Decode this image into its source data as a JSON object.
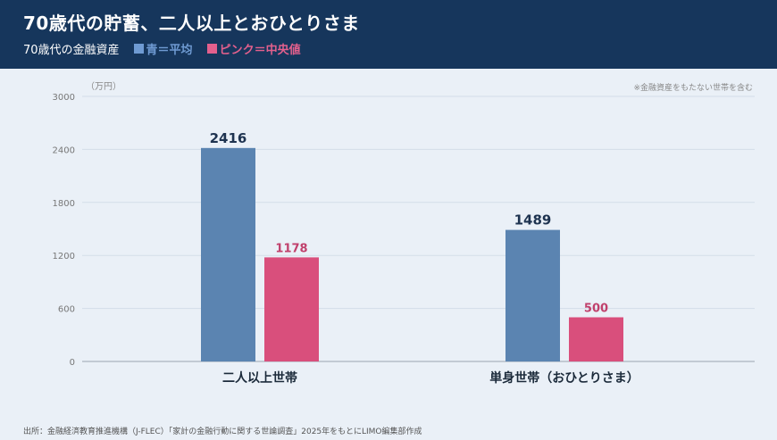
{
  "header": {
    "title": "70歳代の貯蓄、二人以上とおひとりさま",
    "subtitle": "70歳代の金融資産",
    "legend_blue": "青＝平均",
    "legend_pink": "ピンク＝中央値"
  },
  "footer": {
    "source": "出所：金融経済教育推進機構（J-FLEC）「家計の金融行動に関する世論調査」2025年をもとにLIMO編集部作成"
  },
  "colors": {
    "mean": "#5b84b1",
    "median": "#d94f7c",
    "median_label": "#c0406c",
    "header_bg": "#16365c"
  },
  "chart_data": {
    "type": "bar",
    "unit_label": "（万円）",
    "note": "※金融資産をもたない世帯を含む",
    "categories": [
      "二人以上世帯",
      "単身世帯（おひとりさま）"
    ],
    "series": [
      {
        "name": "平均",
        "values": [
          2416,
          1489
        ]
      },
      {
        "name": "中央値",
        "values": [
          1178,
          500
        ]
      }
    ],
    "ylim": [
      0,
      3000
    ],
    "yticks": [
      0,
      600,
      1200,
      1800,
      2400,
      3000
    ],
    "grid": true
  }
}
